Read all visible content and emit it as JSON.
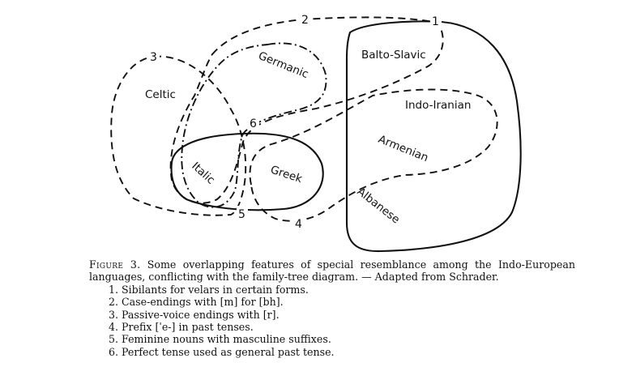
{
  "languages": {
    "balto_slavic": "Balto-Slavic",
    "germanic": "Germanic",
    "celtic": "Celtic",
    "indo_iranian": "Indo-Iranian",
    "armenian": "Armenian",
    "italic": "Italic",
    "greek": "Greek",
    "albanese": "Albanese"
  },
  "isogloss_numbers": {
    "n1": "1",
    "n2": "2",
    "n3": "3",
    "n4": "4",
    "n5": "5",
    "n6": "6"
  },
  "caption": {
    "figure_label": "Figure 3.",
    "text": "Some overlapping features of special resemblance among the Indo-European languages, conflicting with the family-tree diagram. — Adapted from Schrader."
  },
  "legend": [
    "1.  Sibilants for velars in certain forms.",
    "2.  Case-endings with [m] for [bh].",
    "3.  Passive-voice endings with [r].",
    "4.  Prefix [ˈe-] in past tenses.",
    "5.  Feminine nouns with masculine suffixes.",
    "6.  Perfect tense used as general past tense."
  ]
}
